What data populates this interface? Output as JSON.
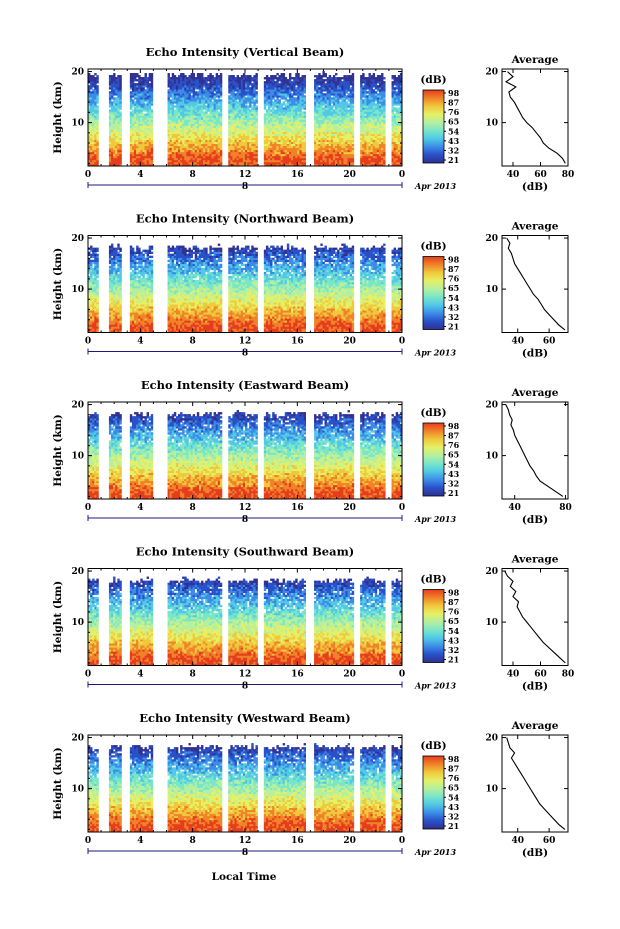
{
  "figure": {
    "xlabel": "Local Time",
    "date_label": "Apr 2013",
    "day_label": "8",
    "day_marker_note": "a",
    "height_label": "Height (km)",
    "colorbar_unit": "(dB)",
    "average_title": "Average",
    "average_unit": "(dB)"
  },
  "colors": {
    "colormap": [
      "#303090",
      "#2850c8",
      "#3c8ce6",
      "#50c8e6",
      "#78e6c8",
      "#b4f0a0",
      "#e6f064",
      "#f0c83c",
      "#f08228",
      "#e63c1e"
    ]
  },
  "chart_data": [
    {
      "type": "heatmap",
      "title": "Echo Intensity (Vertical Beam)",
      "xlabel": "Local Time",
      "ylabel": "Height (km)",
      "x_ticks": [
        "0",
        "4",
        "8",
        "12",
        "16",
        "20",
        "0"
      ],
      "xlim": [
        0,
        24
      ],
      "y_ticks": [
        "10",
        "20"
      ],
      "ylim": [
        1.5,
        20.5
      ],
      "colorbar": {
        "label": "(dB)",
        "ticks": [
          "98",
          "87",
          "76",
          "65",
          "54",
          "43",
          "32",
          "21"
        ],
        "range": [
          21,
          98
        ]
      },
      "data_gaps_hours": [
        [
          0.8,
          1.6
        ],
        [
          2.6,
          3.2
        ],
        [
          4.9,
          6.0
        ],
        [
          10.2,
          10.7
        ],
        [
          13.0,
          13.5
        ],
        [
          16.6,
          17.2
        ],
        [
          20.3,
          20.8
        ],
        [
          22.7,
          23.2
        ]
      ],
      "average_profile": {
        "title": "Average",
        "xlabel": "(dB)",
        "x_ticks": [
          "40",
          "60",
          "80"
        ],
        "xlim": [
          32,
          80
        ],
        "heights_km": [
          2,
          3,
          4,
          5,
          6,
          7,
          8,
          9,
          10,
          11,
          12,
          13,
          14,
          15,
          16,
          17,
          18,
          19,
          20
        ],
        "values_db": [
          78,
          76,
          72,
          66,
          62,
          60,
          57,
          54,
          50,
          47,
          45,
          43,
          41,
          38,
          37,
          42,
          35,
          40,
          36
        ]
      }
    },
    {
      "type": "heatmap",
      "title": "Echo Intensity (Northward Beam)",
      "xlabel": "Local Time",
      "ylabel": "Height (km)",
      "x_ticks": [
        "0",
        "4",
        "8",
        "12",
        "16",
        "20",
        "0"
      ],
      "xlim": [
        0,
        24
      ],
      "y_ticks": [
        "10",
        "20"
      ],
      "ylim": [
        1.5,
        20.5
      ],
      "colorbar": {
        "label": "(dB)",
        "ticks": [
          "98",
          "87",
          "76",
          "65",
          "54",
          "43",
          "32",
          "21"
        ],
        "range": [
          21,
          98
        ]
      },
      "data_gaps_hours": [
        [
          0.8,
          1.6
        ],
        [
          2.6,
          3.2
        ],
        [
          4.9,
          6.0
        ],
        [
          10.2,
          10.7
        ],
        [
          13.0,
          13.5
        ],
        [
          16.6,
          17.2
        ],
        [
          20.3,
          20.8
        ],
        [
          22.7,
          23.2
        ]
      ],
      "average_profile": {
        "title": "Average",
        "xlabel": "(dB)",
        "x_ticks": [
          "40",
          "60"
        ],
        "xlim": [
          30,
          72
        ],
        "heights_km": [
          2,
          3,
          4,
          5,
          6,
          7,
          8,
          9,
          10,
          11,
          12,
          13,
          14,
          15,
          16,
          17,
          18,
          19,
          20
        ],
        "values_db": [
          70,
          66,
          63,
          60,
          57,
          55,
          53,
          50,
          48,
          46,
          44,
          42,
          40,
          38,
          37,
          36,
          34,
          35,
          33
        ]
      }
    },
    {
      "type": "heatmap",
      "title": "Echo Intensity (Eastward Beam)",
      "xlabel": "Local Time",
      "ylabel": "Height (km)",
      "x_ticks": [
        "0",
        "4",
        "8",
        "12",
        "16",
        "20",
        "0"
      ],
      "xlim": [
        0,
        24
      ],
      "y_ticks": [
        "10",
        "20"
      ],
      "ylim": [
        1.5,
        20.5
      ],
      "colorbar": {
        "label": "(dB)",
        "ticks": [
          "98",
          "87",
          "76",
          "65",
          "54",
          "43",
          "32",
          "21"
        ],
        "range": [
          21,
          98
        ]
      },
      "data_gaps_hours": [
        [
          0.8,
          1.6
        ],
        [
          2.6,
          3.2
        ],
        [
          4.9,
          6.0
        ],
        [
          10.2,
          10.7
        ],
        [
          13.0,
          13.5
        ],
        [
          16.6,
          17.2
        ],
        [
          20.3,
          20.8
        ],
        [
          22.7,
          23.2
        ]
      ],
      "average_profile": {
        "title": "Average",
        "xlabel": "(dB)",
        "x_ticks": [
          "40",
          "80"
        ],
        "xlim": [
          30,
          82
        ],
        "heights_km": [
          2,
          3,
          4,
          5,
          6,
          7,
          8,
          9,
          10,
          11,
          12,
          13,
          14,
          15,
          16,
          17,
          18,
          19,
          20
        ],
        "values_db": [
          78,
          72,
          66,
          60,
          57,
          55,
          52,
          50,
          48,
          46,
          44,
          42,
          40,
          39,
          37,
          38,
          36,
          35,
          33
        ]
      }
    },
    {
      "type": "heatmap",
      "title": "Echo Intensity (Southward Beam)",
      "xlabel": "Local Time",
      "ylabel": "Height (km)",
      "x_ticks": [
        "0",
        "4",
        "8",
        "12",
        "16",
        "20",
        "0"
      ],
      "xlim": [
        0,
        24
      ],
      "y_ticks": [
        "10",
        "20"
      ],
      "ylim": [
        1.5,
        20.5
      ],
      "colorbar": {
        "label": "(dB)",
        "ticks": [
          "98",
          "87",
          "76",
          "65",
          "54",
          "43",
          "32",
          "21"
        ],
        "range": [
          21,
          98
        ]
      },
      "data_gaps_hours": [
        [
          0.8,
          1.6
        ],
        [
          2.6,
          3.2
        ],
        [
          4.9,
          6.0
        ],
        [
          10.2,
          10.7
        ],
        [
          13.0,
          13.5
        ],
        [
          16.6,
          17.2
        ],
        [
          20.3,
          20.8
        ],
        [
          22.7,
          23.2
        ]
      ],
      "average_profile": {
        "title": "Average",
        "xlabel": "(dB)",
        "x_ticks": [
          "40",
          "60",
          "80"
        ],
        "xlim": [
          32,
          80
        ],
        "heights_km": [
          2,
          3,
          4,
          5,
          6,
          7,
          8,
          9,
          10,
          11,
          12,
          13,
          14,
          15,
          16,
          17,
          18,
          19,
          20
        ],
        "values_db": [
          78,
          74,
          70,
          66,
          62,
          59,
          56,
          53,
          50,
          47,
          45,
          43,
          44,
          40,
          42,
          38,
          40,
          36,
          34
        ]
      }
    },
    {
      "type": "heatmap",
      "title": "Echo Intensity (Westward Beam)",
      "xlabel": "Local Time",
      "ylabel": "Height (km)",
      "x_ticks": [
        "0",
        "4",
        "8",
        "12",
        "16",
        "20",
        "0"
      ],
      "xlim": [
        0,
        24
      ],
      "y_ticks": [
        "10",
        "20"
      ],
      "ylim": [
        1.5,
        20.5
      ],
      "colorbar": {
        "label": "(dB)",
        "ticks": [
          "98",
          "87",
          "76",
          "65",
          "54",
          "43",
          "32",
          "21"
        ],
        "range": [
          21,
          98
        ]
      },
      "data_gaps_hours": [
        [
          0.8,
          1.6
        ],
        [
          2.6,
          3.2
        ],
        [
          4.9,
          6.0
        ],
        [
          10.2,
          10.7
        ],
        [
          13.0,
          13.5
        ],
        [
          16.6,
          17.2
        ],
        [
          20.3,
          20.8
        ],
        [
          22.7,
          23.2
        ]
      ],
      "average_profile": {
        "title": "Average",
        "xlabel": "(dB)",
        "x_ticks": [
          "40",
          "60"
        ],
        "xlim": [
          30,
          72
        ],
        "heights_km": [
          2,
          3,
          4,
          5,
          6,
          7,
          8,
          9,
          10,
          11,
          12,
          13,
          14,
          15,
          16,
          17,
          18,
          19,
          20
        ],
        "values_db": [
          70,
          66,
          63,
          60,
          57,
          54,
          52,
          50,
          48,
          46,
          44,
          42,
          40,
          38,
          36,
          38,
          35,
          34,
          33
        ]
      }
    }
  ]
}
